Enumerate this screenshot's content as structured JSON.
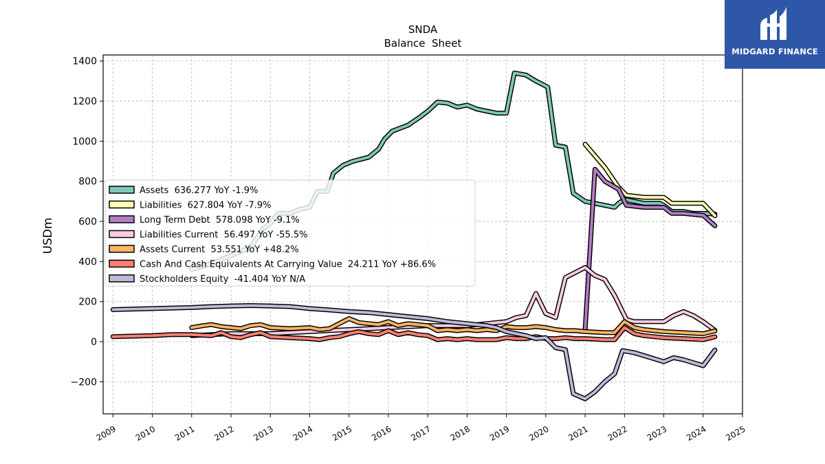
{
  "logo": {
    "text": "MIDGARD FINANCE",
    "icon": "mf-monogram-icon",
    "bg_color": "#2f57a8"
  },
  "chart_data": {
    "type": "line",
    "title": "SNDA",
    "subtitle": "Balance  Sheet",
    "xlabel": "",
    "ylabel": "USDm",
    "xlim": [
      2008.75,
      2025.0
    ],
    "ylim": [
      -360,
      1430
    ],
    "x_ticks": [
      "2009",
      "2010",
      "2011",
      "2012",
      "2013",
      "2014",
      "2015",
      "2016",
      "2017",
      "2018",
      "2019",
      "2020",
      "2021",
      "2022",
      "2023",
      "2024",
      "2025"
    ],
    "y_ticks": [
      -200,
      0,
      200,
      400,
      600,
      800,
      1000,
      1200,
      1400
    ],
    "y_tick_labels": [
      "−200",
      "0",
      "200",
      "400",
      "600",
      "800",
      "1000",
      "1200",
      "1400"
    ],
    "grid": true,
    "legend_position": "center-left",
    "series": [
      {
        "name": "Assets",
        "legend": "Assets  636.277 YoY -1.9%",
        "color": "#7fc9b8",
        "points": [
          [
            2011.0,
            360
          ],
          [
            2011.5,
            390
          ],
          [
            2012.0,
            430
          ],
          [
            2012.5,
            470
          ],
          [
            2012.8,
            560
          ],
          [
            2013.0,
            590
          ],
          [
            2013.2,
            640
          ],
          [
            2013.5,
            640
          ],
          [
            2013.75,
            660
          ],
          [
            2014.0,
            670
          ],
          [
            2014.2,
            750
          ],
          [
            2014.45,
            750
          ],
          [
            2014.6,
            840
          ],
          [
            2014.85,
            880
          ],
          [
            2015.1,
            900
          ],
          [
            2015.5,
            920
          ],
          [
            2015.75,
            960
          ],
          [
            2015.9,
            1010
          ],
          [
            2016.1,
            1050
          ],
          [
            2016.5,
            1080
          ],
          [
            2016.8,
            1120
          ],
          [
            2017.0,
            1150
          ],
          [
            2017.25,
            1195
          ],
          [
            2017.5,
            1190
          ],
          [
            2017.75,
            1170
          ],
          [
            2018.0,
            1180
          ],
          [
            2018.25,
            1160
          ],
          [
            2018.5,
            1150
          ],
          [
            2018.75,
            1140
          ],
          [
            2019.0,
            1140
          ],
          [
            2019.2,
            1340
          ],
          [
            2019.5,
            1330
          ],
          [
            2019.75,
            1300
          ],
          [
            2020.05,
            1270
          ],
          [
            2020.25,
            980
          ],
          [
            2020.5,
            970
          ],
          [
            2020.7,
            740
          ],
          [
            2021.0,
            700
          ],
          [
            2021.25,
            690
          ],
          [
            2021.75,
            670
          ],
          [
            2021.85,
            690
          ],
          [
            2022.0,
            710
          ],
          [
            2022.25,
            700
          ],
          [
            2022.5,
            690
          ],
          [
            2022.9,
            690
          ],
          [
            2023.0,
            680
          ],
          [
            2023.2,
            650
          ],
          [
            2023.5,
            650
          ],
          [
            2023.75,
            640
          ],
          [
            2024.0,
            640
          ],
          [
            2024.3,
            636.277
          ]
        ]
      },
      {
        "name": "Liabilities",
        "legend": "Liabilities  627.804 YoY -7.9%",
        "color": "#fdfdb4",
        "points": [
          [
            2021.0,
            985
          ],
          [
            2021.5,
            870
          ],
          [
            2021.85,
            770
          ],
          [
            2022.05,
            730
          ],
          [
            2022.5,
            720
          ],
          [
            2023.0,
            720
          ],
          [
            2023.2,
            690
          ],
          [
            2023.5,
            690
          ],
          [
            2024.0,
            690
          ],
          [
            2024.3,
            627.804
          ]
        ]
      },
      {
        "name": "Long Term Debt",
        "legend": "Long Term Debt  578.098 YoY -9.1%",
        "color": "#b47cc7",
        "points": [
          [
            2021.0,
            60
          ],
          [
            2021.25,
            860
          ],
          [
            2021.5,
            800
          ],
          [
            2021.85,
            760
          ],
          [
            2022.05,
            680
          ],
          [
            2022.5,
            670
          ],
          [
            2023.0,
            670
          ],
          [
            2023.2,
            640
          ],
          [
            2023.5,
            640
          ],
          [
            2024.0,
            630
          ],
          [
            2024.3,
            578.098
          ]
        ]
      },
      {
        "name": "Liabilities Current",
        "legend": "Liabilities Current  56.497 YoY -55.5%",
        "color": "#fbcde2",
        "points": [
          [
            2011.0,
            30
          ],
          [
            2012.0,
            40
          ],
          [
            2013.0,
            40
          ],
          [
            2014.0,
            50
          ],
          [
            2015.0,
            60
          ],
          [
            2016.0,
            70
          ],
          [
            2017.0,
            80
          ],
          [
            2018.0,
            80
          ],
          [
            2018.5,
            90
          ],
          [
            2019.0,
            100
          ],
          [
            2019.25,
            120
          ],
          [
            2019.5,
            130
          ],
          [
            2019.75,
            240
          ],
          [
            2020.0,
            140
          ],
          [
            2020.25,
            120
          ],
          [
            2020.5,
            320
          ],
          [
            2021.0,
            370
          ],
          [
            2021.25,
            330
          ],
          [
            2021.5,
            310
          ],
          [
            2021.75,
            230
          ],
          [
            2022.05,
            110
          ],
          [
            2022.25,
            100
          ],
          [
            2022.5,
            100
          ],
          [
            2023.0,
            100
          ],
          [
            2023.25,
            130
          ],
          [
            2023.5,
            150
          ],
          [
            2023.75,
            130
          ],
          [
            2024.0,
            100
          ],
          [
            2024.3,
            56.497
          ]
        ]
      },
      {
        "name": "Assets Current",
        "legend": "Assets Current  53.551 YoY +48.2%",
        "color": "#fdb462",
        "points": [
          [
            2011.0,
            70
          ],
          [
            2011.3,
            80
          ],
          [
            2011.5,
            85
          ],
          [
            2011.75,
            75
          ],
          [
            2012.0,
            70
          ],
          [
            2012.25,
            65
          ],
          [
            2012.5,
            80
          ],
          [
            2012.75,
            85
          ],
          [
            2013.0,
            70
          ],
          [
            2013.5,
            65
          ],
          [
            2014.0,
            70
          ],
          [
            2014.25,
            60
          ],
          [
            2014.5,
            65
          ],
          [
            2014.75,
            90
          ],
          [
            2015.0,
            115
          ],
          [
            2015.25,
            95
          ],
          [
            2015.5,
            90
          ],
          [
            2015.75,
            85
          ],
          [
            2016.0,
            100
          ],
          [
            2016.25,
            80
          ],
          [
            2016.5,
            90
          ],
          [
            2016.75,
            85
          ],
          [
            2017.0,
            80
          ],
          [
            2017.25,
            55
          ],
          [
            2017.5,
            60
          ],
          [
            2017.75,
            55
          ],
          [
            2018.0,
            60
          ],
          [
            2018.25,
            55
          ],
          [
            2018.5,
            60
          ],
          [
            2018.75,
            55
          ],
          [
            2019.0,
            75
          ],
          [
            2019.25,
            70
          ],
          [
            2019.5,
            70
          ],
          [
            2019.75,
            75
          ],
          [
            2020.0,
            70
          ],
          [
            2020.25,
            60
          ],
          [
            2020.5,
            55
          ],
          [
            2020.75,
            55
          ],
          [
            2021.0,
            50
          ],
          [
            2021.5,
            45
          ],
          [
            2021.75,
            45
          ],
          [
            2022.0,
            100
          ],
          [
            2022.25,
            70
          ],
          [
            2022.5,
            60
          ],
          [
            2023.0,
            50
          ],
          [
            2023.5,
            45
          ],
          [
            2024.0,
            40
          ],
          [
            2024.3,
            53.551
          ]
        ]
      },
      {
        "name": "Cash And Cash Equivalents At Carrying Value",
        "legend": "Cash And Cash Equivalents At Carrying Value  24.211 YoY +86.6%",
        "color": "#fb8072",
        "points": [
          [
            2009.0,
            25
          ],
          [
            2010.0,
            30
          ],
          [
            2010.5,
            35
          ],
          [
            2011.0,
            35
          ],
          [
            2011.5,
            30
          ],
          [
            2011.75,
            45
          ],
          [
            2012.0,
            25
          ],
          [
            2012.25,
            20
          ],
          [
            2012.5,
            35
          ],
          [
            2012.75,
            45
          ],
          [
            2013.0,
            25
          ],
          [
            2013.5,
            20
          ],
          [
            2014.0,
            15
          ],
          [
            2014.25,
            10
          ],
          [
            2014.5,
            20
          ],
          [
            2014.75,
            25
          ],
          [
            2015.0,
            40
          ],
          [
            2015.25,
            50
          ],
          [
            2015.5,
            40
          ],
          [
            2015.75,
            35
          ],
          [
            2016.0,
            55
          ],
          [
            2016.25,
            35
          ],
          [
            2016.5,
            45
          ],
          [
            2016.75,
            35
          ],
          [
            2017.0,
            30
          ],
          [
            2017.25,
            10
          ],
          [
            2017.5,
            15
          ],
          [
            2017.75,
            10
          ],
          [
            2018.0,
            15
          ],
          [
            2018.25,
            10
          ],
          [
            2018.5,
            10
          ],
          [
            2018.75,
            10
          ],
          [
            2019.0,
            20
          ],
          [
            2019.25,
            15
          ],
          [
            2019.5,
            15
          ],
          [
            2019.75,
            25
          ],
          [
            2020.0,
            15
          ],
          [
            2020.25,
            15
          ],
          [
            2020.5,
            20
          ],
          [
            2020.75,
            15
          ],
          [
            2021.0,
            15
          ],
          [
            2021.5,
            10
          ],
          [
            2021.75,
            10
          ],
          [
            2022.0,
            70
          ],
          [
            2022.25,
            40
          ],
          [
            2022.5,
            30
          ],
          [
            2023.0,
            20
          ],
          [
            2023.5,
            15
          ],
          [
            2024.0,
            10
          ],
          [
            2024.3,
            24.211
          ]
        ]
      },
      {
        "name": "Stockholders Equity",
        "legend": "Stockholders Equity  -41.404 YoY N/A",
        "color": "#bebada",
        "points": [
          [
            2009.0,
            160
          ],
          [
            2010.0,
            165
          ],
          [
            2011.0,
            170
          ],
          [
            2011.5,
            175
          ],
          [
            2012.0,
            178
          ],
          [
            2012.5,
            180
          ],
          [
            2013.0,
            178
          ],
          [
            2013.5,
            175
          ],
          [
            2014.0,
            165
          ],
          [
            2014.5,
            158
          ],
          [
            2015.0,
            150
          ],
          [
            2015.5,
            145
          ],
          [
            2016.0,
            135
          ],
          [
            2016.5,
            125
          ],
          [
            2017.0,
            115
          ],
          [
            2017.5,
            100
          ],
          [
            2018.0,
            90
          ],
          [
            2018.5,
            80
          ],
          [
            2018.75,
            70
          ],
          [
            2019.0,
            50
          ],
          [
            2019.25,
            40
          ],
          [
            2019.5,
            30
          ],
          [
            2019.75,
            15
          ],
          [
            2020.0,
            20
          ],
          [
            2020.25,
            -30
          ],
          [
            2020.5,
            -40
          ],
          [
            2020.7,
            -260
          ],
          [
            2021.0,
            -285
          ],
          [
            2021.25,
            -250
          ],
          [
            2021.5,
            -200
          ],
          [
            2021.75,
            -160
          ],
          [
            2021.95,
            -45
          ],
          [
            2022.25,
            -55
          ],
          [
            2022.5,
            -70
          ],
          [
            2023.0,
            -100
          ],
          [
            2023.25,
            -80
          ],
          [
            2023.5,
            -90
          ],
          [
            2024.0,
            -120
          ],
          [
            2024.3,
            -41.404
          ]
        ]
      }
    ]
  }
}
